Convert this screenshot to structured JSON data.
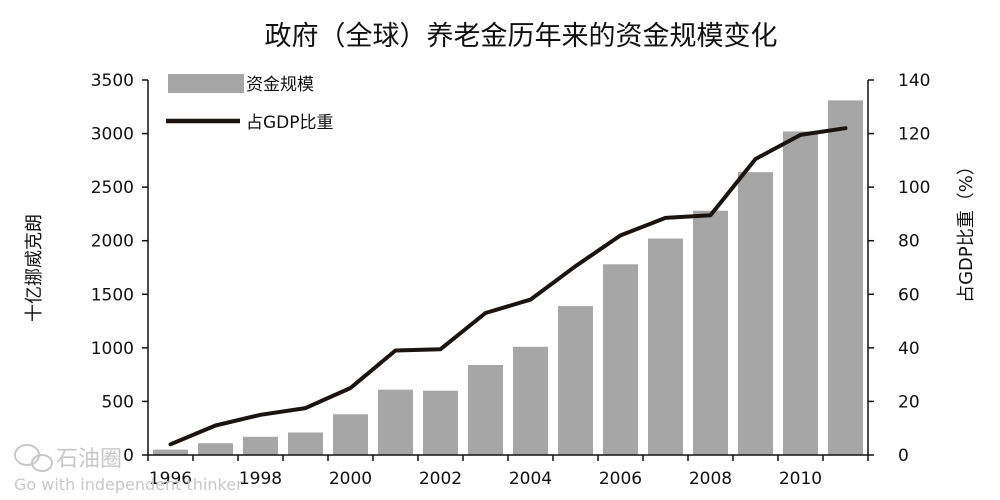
{
  "chart_data": {
    "type": "bar",
    "title": "政府（全球）养老金历年来的资金规模变化",
    "categories": [
      "1996",
      "1997",
      "1998",
      "1999",
      "2000",
      "2001",
      "2002",
      "2003",
      "2004",
      "2005",
      "2006",
      "2007",
      "2008",
      "2009",
      "2010",
      "2011"
    ],
    "x_tick_labels": [
      "1996",
      "1998",
      "2000",
      "2002",
      "2004",
      "2006",
      "2008",
      "2010"
    ],
    "ylabel_left": "十亿挪威克朗",
    "ylabel_right": "占GDP比重（%）",
    "ylim_left": [
      0,
      3500
    ],
    "yticks_left": [
      0,
      500,
      1000,
      1500,
      2000,
      2500,
      3000,
      3500
    ],
    "ylim_right": [
      0,
      140
    ],
    "yticks_right": [
      0,
      20,
      40,
      60,
      80,
      100,
      120,
      140
    ],
    "grid": false,
    "legend_position": "top-left",
    "series": [
      {
        "name": "资金规模",
        "type": "bar",
        "axis": "left",
        "color": "#a6a6a6",
        "values": [
          50,
          110,
          170,
          210,
          380,
          610,
          600,
          840,
          1010,
          1390,
          1780,
          2020,
          2280,
          2640,
          3020,
          3310
        ]
      },
      {
        "name": "占GDP比重",
        "type": "line",
        "axis": "right",
        "color": "#1a1410",
        "values": [
          4,
          11,
          15,
          17.5,
          25,
          39,
          39.5,
          53,
          58,
          70.5,
          82,
          88.5,
          89.5,
          110.5,
          119.5,
          122
        ]
      }
    ]
  },
  "watermark": {
    "icon": "wechat-icon",
    "text": "石油圈",
    "subtext": "Go with independent thinker"
  }
}
